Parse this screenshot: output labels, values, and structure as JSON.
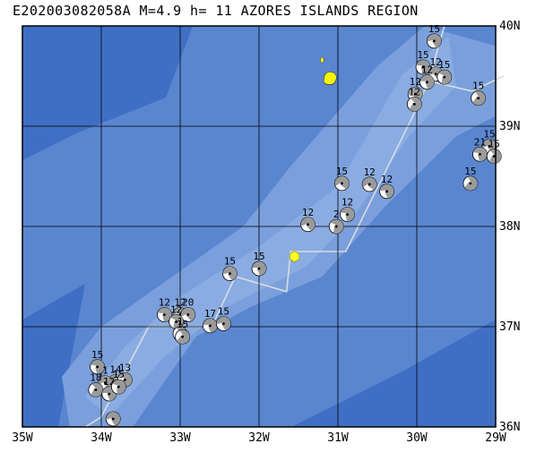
{
  "map": {
    "title": "E202003082058A M=4.9 h= 11 AZORES ISLANDS REGION",
    "lon_range": [
      -35,
      -29
    ],
    "lat_range": [
      36,
      40
    ],
    "lon_labels": [
      "35W",
      "34W",
      "33W",
      "32W",
      "31W",
      "30W",
      "29W"
    ],
    "lat_labels": [
      "40N",
      "39N",
      "38N",
      "37N",
      "36N"
    ],
    "colors": {
      "ocean_deep": "#3f6fc4",
      "ocean_mid": "#5a86d0",
      "ocean_shallow": "#7a9fdc",
      "ocean_ridge": "#92b2e4",
      "island": "#f4f40a",
      "event": "#ffff22",
      "plate_boundary": "#d8dce4",
      "grid": "#000000"
    },
    "target_event": {
      "lon": -31.55,
      "lat": 37.7
    },
    "islands": [
      {
        "lon": -31.1,
        "lat": 39.47,
        "size": 1
      },
      {
        "lon": -31.2,
        "lat": 39.66,
        "size": 0
      }
    ],
    "plate_boundary": [
      [
        -34.2,
        36.0
      ],
      [
        -34.0,
        36.1
      ],
      [
        -33.4,
        37.0
      ],
      [
        -32.6,
        37.0
      ],
      [
        -32.3,
        37.5
      ],
      [
        -31.65,
        37.35
      ],
      [
        -31.6,
        37.75
      ],
      [
        -30.9,
        37.75
      ],
      [
        -30.05,
        39.1
      ],
      [
        -29.85,
        39.45
      ],
      [
        -29.3,
        39.35
      ],
      [
        -28.9,
        39.5
      ]
    ],
    "plate_boundary_north": [
      [
        -29.85,
        39.45
      ],
      [
        -29.65,
        40.0
      ]
    ],
    "mechanisms": [
      {
        "lon": -29.78,
        "lat": 39.85,
        "label": "15",
        "rot": 20
      },
      {
        "lon": -29.92,
        "lat": 39.59,
        "label": "15",
        "rot": 40
      },
      {
        "lon": -29.76,
        "lat": 39.52,
        "label": "12",
        "rot": 10
      },
      {
        "lon": -29.65,
        "lat": 39.49,
        "label": "15",
        "rot": 60
      },
      {
        "lon": -29.87,
        "lat": 39.44,
        "label": "12",
        "rot": 30
      },
      {
        "lon": -30.02,
        "lat": 39.32,
        "label": "12",
        "rot": 20
      },
      {
        "lon": -30.03,
        "lat": 39.22,
        "label": "12",
        "rot": 80
      },
      {
        "lon": -29.22,
        "lat": 39.28,
        "label": "15",
        "rot": 90
      },
      {
        "lon": -29.08,
        "lat": 38.8,
        "label": "15",
        "rot": 10
      },
      {
        "lon": -29.2,
        "lat": 38.72,
        "label": "21",
        "rot": 40
      },
      {
        "lon": -29.02,
        "lat": 38.7,
        "label": "15",
        "rot": 80
      },
      {
        "lon": -29.32,
        "lat": 38.43,
        "label": "15",
        "rot": 90
      },
      {
        "lon": -30.95,
        "lat": 38.43,
        "label": "15",
        "rot": 0
      },
      {
        "lon": -30.6,
        "lat": 38.42,
        "label": "12",
        "rot": 0
      },
      {
        "lon": -30.38,
        "lat": 38.35,
        "label": "12",
        "rot": 30
      },
      {
        "lon": -30.88,
        "lat": 38.12,
        "label": "12",
        "rot": 40
      },
      {
        "lon": -31.02,
        "lat": 38.0,
        "label": "2",
        "rot": 60
      },
      {
        "lon": -31.38,
        "lat": 38.02,
        "label": "12",
        "rot": 10
      },
      {
        "lon": -32.0,
        "lat": 37.58,
        "label": "15",
        "rot": 30
      },
      {
        "lon": -32.37,
        "lat": 37.53,
        "label": "15",
        "rot": 20
      },
      {
        "lon": -33.2,
        "lat": 37.12,
        "label": "12",
        "rot": 40
      },
      {
        "lon": -33.0,
        "lat": 37.12,
        "label": "12",
        "rot": 30
      },
      {
        "lon": -32.9,
        "lat": 37.12,
        "label": "20",
        "rot": 10
      },
      {
        "lon": -33.05,
        "lat": 37.05,
        "label": "12",
        "rot": 60
      },
      {
        "lon": -33.0,
        "lat": 36.93,
        "label": "1",
        "rot": 80
      },
      {
        "lon": -32.97,
        "lat": 36.9,
        "label": "15",
        "rot": 90
      },
      {
        "lon": -32.62,
        "lat": 37.01,
        "label": "17",
        "rot": 30
      },
      {
        "lon": -32.45,
        "lat": 37.03,
        "label": "15",
        "rot": 20
      },
      {
        "lon": -34.05,
        "lat": 36.6,
        "label": "15",
        "rot": 40
      },
      {
        "lon": -33.82,
        "lat": 36.45,
        "label": "14",
        "rot": 20
      },
      {
        "lon": -33.7,
        "lat": 36.47,
        "label": "13",
        "rot": 60
      },
      {
        "lon": -33.95,
        "lat": 36.44,
        "label": "1",
        "rot": 10
      },
      {
        "lon": -34.07,
        "lat": 36.37,
        "label": "18",
        "rot": 80
      },
      {
        "lon": -33.9,
        "lat": 36.33,
        "label": "12",
        "rot": 30
      },
      {
        "lon": -33.78,
        "lat": 36.4,
        "label": "15",
        "rot": 50
      },
      {
        "lon": -33.85,
        "lat": 36.08,
        "label": "",
        "rot": 20
      }
    ]
  }
}
